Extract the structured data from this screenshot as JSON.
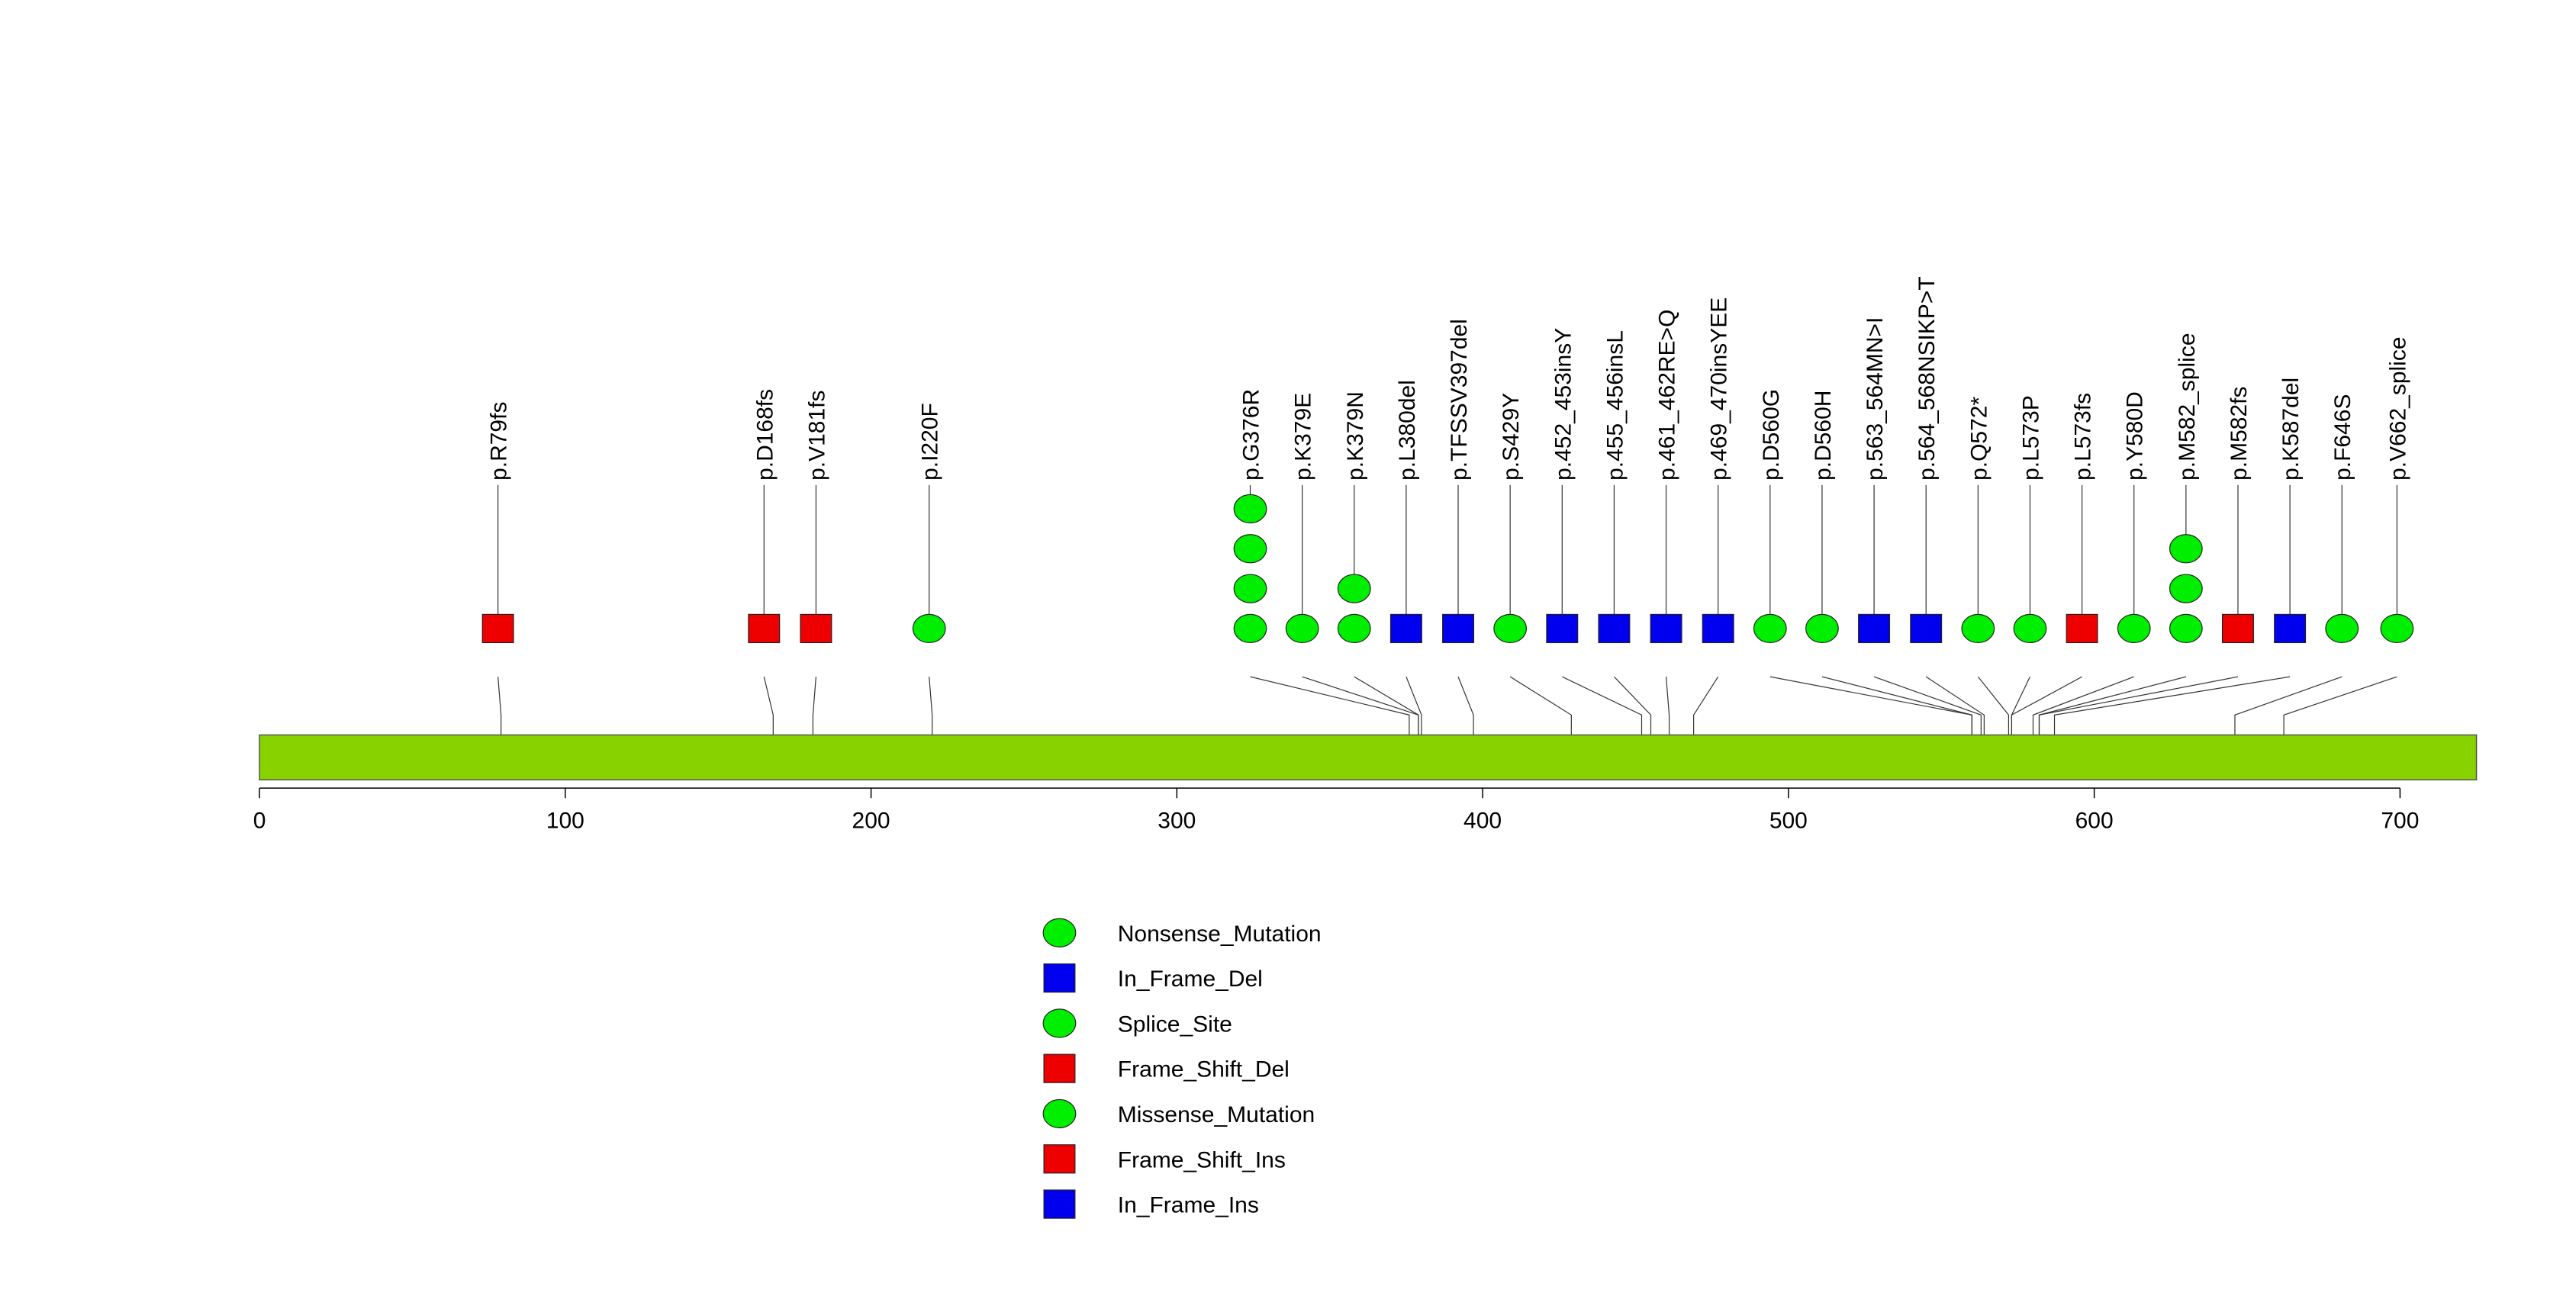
{
  "chart_data": {
    "type": "lollipop",
    "protein_length": 725,
    "axis": {
      "min": 0,
      "max": 700,
      "ticks": [
        0,
        100,
        200,
        300,
        400,
        500,
        600,
        700
      ]
    },
    "colors": {
      "green": "#00ee00",
      "blue": "#0000ee",
      "red": "#ee0000",
      "domain": "#88d200"
    },
    "mutations": [
      {
        "label": "p.R79fs",
        "position": 79,
        "slot": 78,
        "stack": [
          {
            "shape": "square",
            "color": "red"
          }
        ]
      },
      {
        "label": "p.D168fs",
        "position": 168,
        "slot": 165,
        "stack": [
          {
            "shape": "square",
            "color": "red"
          }
        ]
      },
      {
        "label": "p.V181fs",
        "position": 181,
        "slot": 182,
        "stack": [
          {
            "shape": "square",
            "color": "red"
          }
        ]
      },
      {
        "label": "p.I220F",
        "position": 220,
        "slot": 219,
        "stack": [
          {
            "shape": "circle",
            "color": "green"
          }
        ]
      },
      {
        "label": "p.G376R",
        "position": 376,
        "slot": 324,
        "stack": [
          {
            "shape": "circle",
            "color": "green"
          },
          {
            "shape": "circle",
            "color": "green"
          },
          {
            "shape": "circle",
            "color": "green"
          },
          {
            "shape": "circle",
            "color": "green"
          }
        ]
      },
      {
        "label": "p.K379E",
        "position": 379,
        "slot": 341,
        "stack": [
          {
            "shape": "circle",
            "color": "green"
          }
        ]
      },
      {
        "label": "p.K379N",
        "position": 379,
        "slot": 358,
        "stack": [
          {
            "shape": "circle",
            "color": "green"
          },
          {
            "shape": "circle",
            "color": "green"
          }
        ]
      },
      {
        "label": "p.L380del",
        "position": 380,
        "slot": 375,
        "stack": [
          {
            "shape": "square",
            "color": "blue"
          }
        ]
      },
      {
        "label": "p.TFSSV397del",
        "position": 397,
        "slot": 392,
        "stack": [
          {
            "shape": "square",
            "color": "blue"
          }
        ]
      },
      {
        "label": "p.S429Y",
        "position": 429,
        "slot": 409,
        "stack": [
          {
            "shape": "circle",
            "color": "green"
          }
        ]
      },
      {
        "label": "p.452_453insY",
        "position": 452,
        "slot": 426,
        "stack": [
          {
            "shape": "square",
            "color": "blue"
          }
        ]
      },
      {
        "label": "p.455_456insL",
        "position": 455,
        "slot": 443,
        "stack": [
          {
            "shape": "square",
            "color": "blue"
          }
        ]
      },
      {
        "label": "p.461_462RE>Q",
        "position": 461,
        "slot": 460,
        "stack": [
          {
            "shape": "square",
            "color": "blue"
          }
        ]
      },
      {
        "label": "p.469_470insYEE",
        "position": 469,
        "slot": 477,
        "stack": [
          {
            "shape": "square",
            "color": "blue"
          }
        ]
      },
      {
        "label": "p.D560G",
        "position": 560,
        "slot": 494,
        "stack": [
          {
            "shape": "circle",
            "color": "green"
          }
        ]
      },
      {
        "label": "p.D560H",
        "position": 560,
        "slot": 511,
        "stack": [
          {
            "shape": "circle",
            "color": "green"
          }
        ]
      },
      {
        "label": "p.563_564MN>I",
        "position": 563,
        "slot": 528,
        "stack": [
          {
            "shape": "square",
            "color": "blue"
          }
        ]
      },
      {
        "label": "p.564_568NSIKP>T",
        "position": 564,
        "slot": 545,
        "stack": [
          {
            "shape": "square",
            "color": "blue"
          }
        ]
      },
      {
        "label": "p.Q572*",
        "position": 572,
        "slot": 562,
        "stack": [
          {
            "shape": "circle",
            "color": "green"
          }
        ]
      },
      {
        "label": "p.L573P",
        "position": 573,
        "slot": 579,
        "stack": [
          {
            "shape": "circle",
            "color": "green"
          }
        ]
      },
      {
        "label": "p.L573fs",
        "position": 573,
        "slot": 596,
        "stack": [
          {
            "shape": "square",
            "color": "red"
          }
        ]
      },
      {
        "label": "p.Y580D",
        "position": 580,
        "slot": 613,
        "stack": [
          {
            "shape": "circle",
            "color": "green"
          }
        ]
      },
      {
        "label": "p.M582_splice",
        "position": 582,
        "slot": 630,
        "stack": [
          {
            "shape": "circle",
            "color": "green"
          },
          {
            "shape": "circle",
            "color": "green"
          },
          {
            "shape": "circle",
            "color": "green"
          }
        ]
      },
      {
        "label": "p.M582fs",
        "position": 582,
        "slot": 647,
        "stack": [
          {
            "shape": "square",
            "color": "red"
          }
        ]
      },
      {
        "label": "p.K587del",
        "position": 587,
        "slot": 664,
        "stack": [
          {
            "shape": "square",
            "color": "blue"
          }
        ]
      },
      {
        "label": "p.F646S",
        "position": 646,
        "slot": 681,
        "stack": [
          {
            "shape": "circle",
            "color": "green"
          }
        ]
      },
      {
        "label": "p.V662_splice",
        "position": 662,
        "slot": 699,
        "stack": [
          {
            "shape": "circle",
            "color": "green"
          }
        ]
      }
    ],
    "legend": [
      {
        "label": "Nonsense_Mutation",
        "shape": "circle",
        "color": "green"
      },
      {
        "label": "In_Frame_Del",
        "shape": "square",
        "color": "blue"
      },
      {
        "label": "Splice_Site",
        "shape": "circle",
        "color": "green"
      },
      {
        "label": "Frame_Shift_Del",
        "shape": "square",
        "color": "red"
      },
      {
        "label": "Missense_Mutation",
        "shape": "circle",
        "color": "green"
      },
      {
        "label": "Frame_Shift_Ins",
        "shape": "square",
        "color": "red"
      },
      {
        "label": "In_Frame_Ins",
        "shape": "square",
        "color": "blue"
      }
    ]
  }
}
